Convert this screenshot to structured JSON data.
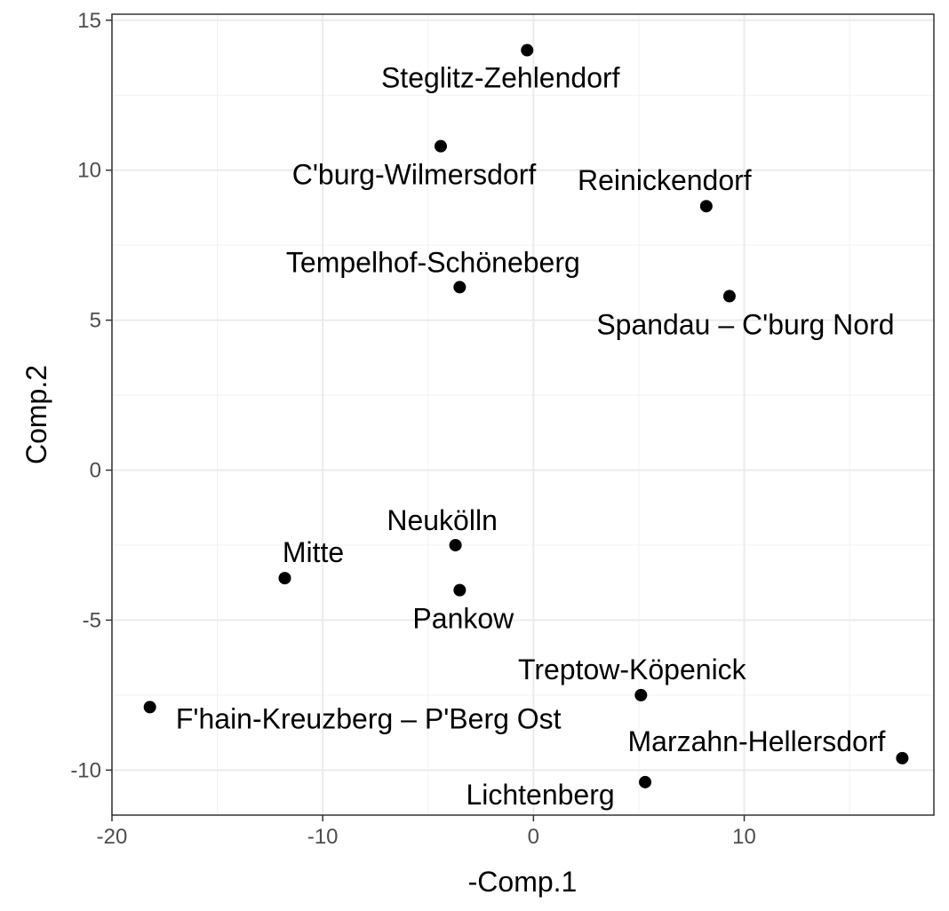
{
  "chart_data": {
    "type": "scatter",
    "title": "",
    "xlabel": "-Comp.1",
    "ylabel": "Comp.2",
    "xlim": [
      -20,
      19
    ],
    "ylim": [
      -11.5,
      15.2
    ],
    "x_ticks": [
      -20,
      -10,
      0,
      10
    ],
    "y_ticks": [
      15,
      10,
      5,
      0,
      -5,
      -10
    ],
    "x_tick_labels": [
      "-20",
      "-10",
      "0",
      "10"
    ],
    "y_tick_labels": [
      "15",
      "10",
      "5",
      "0",
      "-5",
      "-10"
    ],
    "grid": true,
    "legend": "none",
    "points": [
      {
        "label": "Steglitz-Zehlendorf",
        "x": -0.3,
        "y": 14.0
      },
      {
        "label": "C'burg-Wilmersdorf",
        "x": -4.4,
        "y": 10.8
      },
      {
        "label": "Reinickendorf",
        "x": 8.2,
        "y": 8.8
      },
      {
        "label": "Tempelhof-Schöneberg",
        "x": -3.5,
        "y": 6.1
      },
      {
        "label": "Spandau – C'burg Nord",
        "x": 9.3,
        "y": 5.8
      },
      {
        "label": "Neukölln",
        "x": -3.7,
        "y": -2.5
      },
      {
        "label": "Mitte",
        "x": -11.8,
        "y": -3.6
      },
      {
        "label": "Pankow",
        "x": -3.5,
        "y": -4.0
      },
      {
        "label": "Treptow-Köpenick",
        "x": 5.1,
        "y": -7.5
      },
      {
        "label": "F'hain-Kreuzberg – P'Berg Ost",
        "x": -18.2,
        "y": -7.9
      },
      {
        "label": "Marzahn-Hellersdorf",
        "x": 17.5,
        "y": -9.6
      },
      {
        "label": "Lichtenberg",
        "x": 5.3,
        "y": -10.4
      }
    ]
  }
}
